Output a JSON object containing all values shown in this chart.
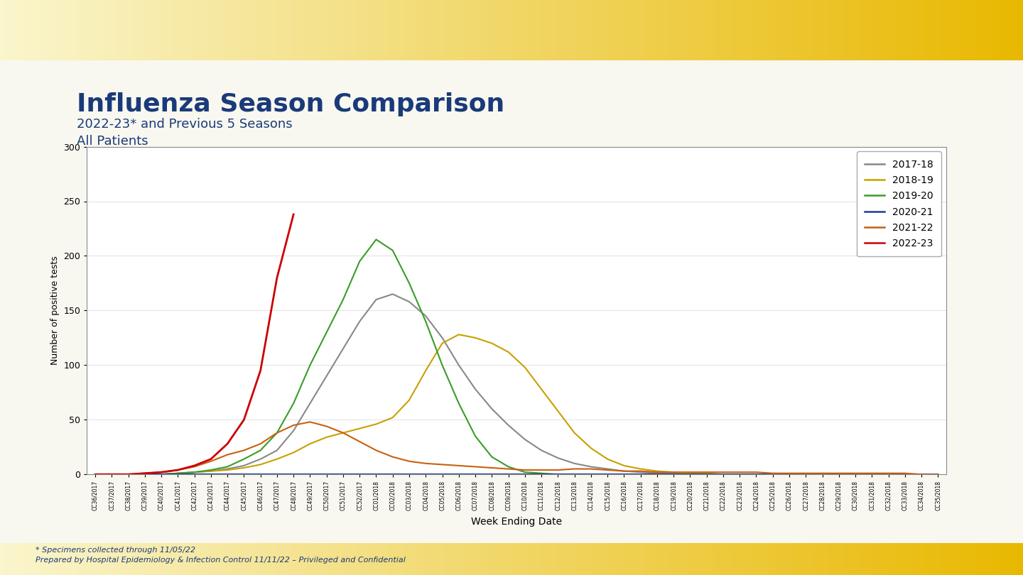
{
  "title": "Influenza Season Comparison",
  "subtitle1": "2022-23* and Previous 5 Seasons",
  "subtitle2": "All Patients",
  "xlabel": "Week Ending Date",
  "ylabel": "Number of positive tests",
  "footnote1": "* Specimens collected through 11/05/22",
  "footnote2": "Prepared by Hospital Epidemiology & Infection Control 11/11/22 – Privileged and Confidential",
  "ylim": [
    0,
    300
  ],
  "yticks": [
    0,
    50,
    100,
    150,
    200,
    250,
    300
  ],
  "header_gradient_left": "#f5f0a0",
  "header_gradient_right": "#e8b800",
  "footer_color": "#e8b800",
  "white_panel": "#ffffff",
  "blue_border": "#1a3a7a",
  "title_color": "#1a3a7a",
  "seasons": {
    "2017-18": {
      "color": "#888888",
      "linewidth": 1.5,
      "data": [
        0,
        0,
        0,
        0,
        0,
        1,
        2,
        3,
        5,
        8,
        14,
        22,
        40,
        65,
        90,
        115,
        140,
        160,
        165,
        158,
        145,
        125,
        100,
        78,
        60,
        45,
        32,
        22,
        15,
        10,
        7,
        5,
        3,
        2,
        1,
        1,
        1,
        0,
        0,
        0,
        0,
        0,
        0,
        0,
        0,
        0,
        0,
        0,
        0,
        0,
        0,
        0
      ]
    },
    "2018-19": {
      "color": "#c8a000",
      "linewidth": 1.5,
      "data": [
        0,
        0,
        0,
        0,
        0,
        1,
        2,
        3,
        4,
        6,
        9,
        14,
        20,
        28,
        34,
        38,
        42,
        46,
        52,
        68,
        95,
        120,
        128,
        125,
        120,
        112,
        98,
        78,
        58,
        38,
        24,
        14,
        8,
        5,
        3,
        2,
        1,
        1,
        0,
        0,
        0,
        0,
        0,
        0,
        0,
        0,
        0,
        0,
        0,
        0,
        0,
        0
      ]
    },
    "2019-20": {
      "color": "#3a9c2a",
      "linewidth": 1.5,
      "data": [
        0,
        0,
        0,
        0,
        0,
        1,
        2,
        4,
        7,
        14,
        22,
        38,
        65,
        100,
        130,
        160,
        195,
        215,
        205,
        175,
        140,
        100,
        65,
        35,
        16,
        7,
        2,
        1,
        0,
        0,
        0,
        0,
        0,
        0,
        0,
        0,
        0,
        0,
        0,
        0,
        0,
        0,
        0,
        0,
        0,
        0,
        0,
        0,
        0,
        0,
        0,
        0
      ]
    },
    "2020-21": {
      "color": "#1a3a9c",
      "linewidth": 1.5,
      "data": [
        0,
        0,
        0,
        0,
        0,
        0,
        0,
        0,
        0,
        0,
        0,
        0,
        0,
        0,
        0,
        0,
        0,
        0,
        0,
        0,
        0,
        0,
        0,
        0,
        0,
        0,
        0,
        0,
        0,
        0,
        0,
        0,
        0,
        0,
        0,
        0,
        0,
        0,
        0,
        0,
        0,
        0,
        0,
        0,
        0,
        0,
        0,
        0,
        0,
        0,
        0,
        0
      ]
    },
    "2021-22": {
      "color": "#c86010",
      "linewidth": 1.5,
      "data": [
        0,
        0,
        0,
        1,
        2,
        4,
        7,
        12,
        18,
        22,
        28,
        38,
        45,
        48,
        44,
        38,
        30,
        22,
        16,
        12,
        10,
        9,
        8,
        7,
        6,
        5,
        4,
        4,
        4,
        5,
        5,
        4,
        3,
        3,
        2,
        2,
        2,
        2,
        2,
        2,
        2,
        1,
        1,
        1,
        1,
        1,
        1,
        1,
        1,
        1,
        0,
        0
      ]
    },
    "2022-23": {
      "color": "#cc0000",
      "linewidth": 2.0,
      "data": [
        0,
        0,
        0,
        1,
        2,
        4,
        8,
        14,
        28,
        50,
        95,
        180,
        238,
        null,
        null,
        null,
        null,
        null,
        null,
        null,
        null,
        null,
        null,
        null,
        null,
        null,
        null,
        null,
        null,
        null,
        null,
        null,
        null,
        null,
        null,
        null,
        null,
        null,
        null,
        null,
        null,
        null,
        null,
        null,
        null,
        null,
        null,
        null,
        null,
        null,
        null,
        null
      ]
    }
  },
  "x_labels": [
    "CC36/2017",
    "CC37/2017",
    "CC38/2017",
    "CC39/2017",
    "CC40/2017",
    "CC41/2017",
    "CC42/2017",
    "CC43/2017",
    "CC44/2017",
    "CC45/2017",
    "CC46/2017",
    "CC47/2017",
    "CC48/2017",
    "CC49/2017",
    "CC50/2017",
    "CC51/2017",
    "CC52/2017",
    "CC01/2018",
    "CC02/2018",
    "CC03/2018",
    "CC04/2018",
    "CC05/2018",
    "CC06/2018",
    "CC07/2018",
    "CC08/2018",
    "CC09/2018",
    "CC10/2018",
    "CC11/2018",
    "CC12/2018",
    "CC13/2018",
    "CC14/2018",
    "CC15/2018",
    "CC16/2018",
    "CC17/2018",
    "CC18/2018",
    "CC19/2018",
    "CC20/2018",
    "CC21/2018",
    "CC22/2018",
    "CC23/2018",
    "CC24/2018",
    "CC25/2018",
    "CC26/2018",
    "CC27/2018",
    "CC28/2018",
    "CC29/2018",
    "CC30/2018",
    "CC31/2018",
    "CC32/2018",
    "CC33/2018",
    "CC34/2018",
    "CC35/2018"
  ],
  "legend_order": [
    "2017-18",
    "2018-19",
    "2019-20",
    "2020-21",
    "2021-22",
    "2022-23"
  ]
}
